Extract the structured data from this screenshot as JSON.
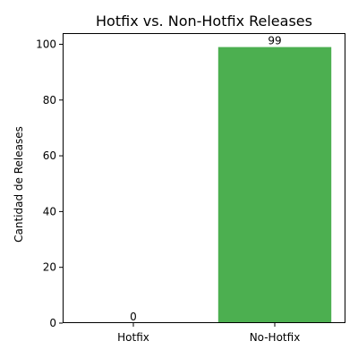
{
  "chart_data": {
    "type": "bar",
    "title": "Hotfix vs. Non-Hotfix Releases",
    "xlabel": "",
    "ylabel": "Cantidad de Releases",
    "categories": [
      "Hotfix",
      "No-Hotfix"
    ],
    "values": [
      0,
      99
    ],
    "data_labels": [
      "0",
      "99"
    ],
    "ylim": [
      0,
      104
    ],
    "yticks": [
      0,
      20,
      40,
      60,
      80,
      100
    ],
    "colors": [
      "#4caf50",
      "#4caf50"
    ],
    "grid": false,
    "legend": "none"
  }
}
